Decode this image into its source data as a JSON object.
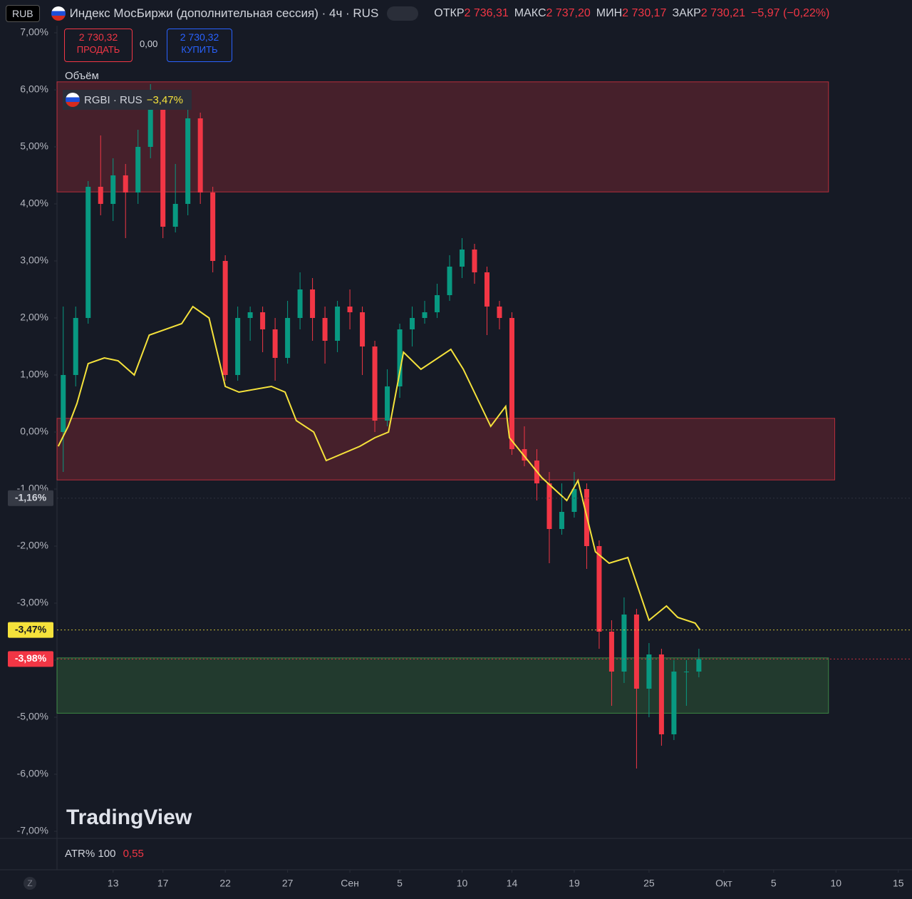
{
  "ui": {
    "currency": "RUB",
    "title": "Индекс МосБиржи (дополнительная сессия) · 4ч · RUS",
    "ohlc": [
      {
        "key": "ОТКР",
        "value": "2 736,31"
      },
      {
        "key": "МАКС",
        "value": "2 737,20"
      },
      {
        "key": "МИН",
        "value": "2 730,17"
      },
      {
        "key": "ЗАКР",
        "value": "2 730,21"
      }
    ],
    "change": "−5,97 (−0,22%)",
    "sell": {
      "price": "2 730,32",
      "label": "ПРОДАТЬ"
    },
    "spread": "0,00",
    "buy": {
      "price": "2 730,32",
      "label": "КУПИТЬ"
    },
    "volume": "Объём",
    "compare_change": "−3,47%",
    "logo": "TradingView",
    "indicator": "ATR% 100",
    "indicator_value": "0,55",
    "timezone": "Z"
  },
  "chart_data": {
    "type": "candlestick",
    "grid": false,
    "xlim": [
      8.5,
      77.1
    ],
    "ylim": [
      -7.125,
      7.125
    ],
    "yticks": [
      {
        "value": 7,
        "label": "7,00%"
      },
      {
        "value": 6,
        "label": "6,00%"
      },
      {
        "value": 5,
        "label": "5,00%"
      },
      {
        "value": 4,
        "label": "4,00%"
      },
      {
        "value": 3,
        "label": "3,00%"
      },
      {
        "value": 2,
        "label": "2,00%"
      },
      {
        "value": 1,
        "label": "1,00%"
      },
      {
        "value": 0,
        "label": "0,00%"
      },
      {
        "value": -1,
        "label": "-1,00%"
      },
      {
        "value": -2,
        "label": "-2,00%"
      },
      {
        "value": -3,
        "label": "-3,00%"
      },
      {
        "value": -4,
        "label": "-4,00%"
      },
      {
        "value": -5,
        "label": "-5,00%"
      },
      {
        "value": -6,
        "label": "-6,00%"
      },
      {
        "value": -7,
        "label": "-7,00%"
      }
    ],
    "xticks": [
      13,
      17,
      22,
      27,
      {
        "value": 32,
        "label": "Сен"
      },
      {
        "value": 36,
        "label": "5"
      },
      {
        "value": 41,
        "label": "10"
      },
      {
        "value": 45,
        "label": "14"
      },
      {
        "value": 50,
        "label": "19"
      },
      {
        "value": 56,
        "label": "25"
      },
      {
        "value": 62,
        "label": "Окт"
      },
      {
        "value": 66,
        "label": "5"
      },
      {
        "value": 71,
        "label": "10"
      },
      {
        "value": 76,
        "label": "15"
      }
    ],
    "up_color": "#089981",
    "down_color": "#f23645",
    "candles": {
      "x": [
        9,
        10,
        11,
        12,
        13,
        14,
        15,
        16,
        17,
        18,
        19,
        20,
        21,
        22,
        23,
        24,
        25,
        26,
        27,
        28,
        29,
        30,
        31,
        32,
        33,
        34,
        35,
        36,
        37,
        38,
        39,
        40,
        41,
        42,
        43,
        44,
        45,
        46,
        47,
        48,
        49,
        50,
        51,
        52,
        53,
        54,
        55,
        56,
        57,
        58,
        59,
        60
      ],
      "open": [
        0.0,
        1.0,
        2.0,
        4.3,
        4.0,
        4.5,
        4.2,
        5.0,
        5.8,
        3.6,
        4.0,
        5.5,
        4.2,
        3.0,
        1.0,
        2.0,
        2.1,
        1.8,
        1.3,
        2.0,
        2.5,
        2.0,
        1.6,
        2.2,
        2.1,
        1.5,
        0.2,
        0.8,
        1.8,
        2.0,
        2.1,
        2.4,
        2.9,
        3.2,
        2.8,
        2.2,
        2.0,
        -0.3,
        -0.5,
        -0.9,
        -1.7,
        -1.4,
        -1.0,
        -2.0,
        -3.5,
        -4.2,
        -3.2,
        -4.5,
        -3.9,
        -5.3,
        -4.2,
        -4.2
      ],
      "high": [
        2.2,
        2.2,
        4.4,
        5.2,
        4.8,
        4.7,
        5.3,
        6.1,
        6.0,
        4.7,
        5.8,
        5.6,
        4.3,
        3.1,
        2.2,
        2.2,
        2.2,
        2.0,
        2.3,
        2.8,
        2.7,
        2.2,
        2.3,
        2.5,
        2.2,
        1.6,
        1.1,
        1.9,
        2.2,
        2.3,
        2.6,
        3.1,
        3.4,
        3.3,
        2.9,
        2.3,
        2.1,
        0.1,
        -0.3,
        -0.7,
        -0.9,
        -0.7,
        -0.9,
        -1.9,
        -3.3,
        -2.9,
        -3.1,
        -3.7,
        -3.8,
        -4.0,
        -4.0,
        -3.8
      ],
      "low": [
        -0.7,
        0.8,
        1.9,
        3.8,
        3.7,
        3.4,
        4.0,
        4.8,
        3.4,
        3.5,
        3.8,
        4.0,
        2.8,
        0.9,
        0.9,
        1.6,
        1.4,
        0.9,
        1.2,
        1.8,
        1.6,
        1.2,
        1.4,
        1.8,
        1.0,
        0.0,
        0.1,
        0.6,
        1.5,
        1.9,
        2.0,
        2.3,
        2.7,
        2.6,
        1.7,
        1.8,
        -0.4,
        -0.6,
        -1.2,
        -2.3,
        -1.8,
        -1.5,
        -2.4,
        -3.8,
        -4.8,
        -4.4,
        -5.9,
        -5.0,
        -5.5,
        -5.4,
        -4.8,
        -4.3
      ],
      "close": [
        1.0,
        2.0,
        4.3,
        4.0,
        4.5,
        4.2,
        5.0,
        5.8,
        3.6,
        4.0,
        5.5,
        4.2,
        3.0,
        1.0,
        2.0,
        2.1,
        1.8,
        1.3,
        2.0,
        2.5,
        2.0,
        1.6,
        2.2,
        2.1,
        1.5,
        0.2,
        0.8,
        1.8,
        2.0,
        2.1,
        2.4,
        2.9,
        3.2,
        2.8,
        2.2,
        2.0,
        -0.3,
        -0.5,
        -0.9,
        -1.7,
        -1.4,
        -1.0,
        -2.0,
        -3.5,
        -4.2,
        -3.2,
        -4.5,
        -3.9,
        -5.3,
        -4.2,
        -4.2,
        -3.98
      ]
    },
    "line": {
      "name": "RGBI · RUS",
      "color": "#f5e23b",
      "x": [
        8.6,
        9.4,
        10.1,
        11.0,
        12.3,
        13.4,
        14.7,
        15.9,
        18.5,
        19.4,
        20.7,
        22.0,
        23.1,
        25.7,
        26.8,
        27.7,
        29.1,
        30.1,
        32.8,
        34.0,
        35.1,
        36.3,
        37.7,
        40.1,
        41.1,
        43.3,
        44.5,
        44.8,
        47.4,
        49.4,
        50.3,
        51.7,
        52.8,
        54.3,
        56.0,
        57.4,
        58.3,
        59.7,
        60.1
      ],
      "values": [
        -0.25,
        0.1,
        0.5,
        1.2,
        1.3,
        1.25,
        1.0,
        1.7,
        1.9,
        2.2,
        2.0,
        0.8,
        0.7,
        0.8,
        0.7,
        0.2,
        0.0,
        -0.5,
        -0.25,
        -0.1,
        0.0,
        1.4,
        1.1,
        1.45,
        1.1,
        0.1,
        0.45,
        -0.1,
        -0.8,
        -1.2,
        -0.85,
        -2.1,
        -2.3,
        -2.2,
        -3.3,
        -3.05,
        -3.25,
        -3.35,
        -3.47
      ]
    },
    "zones": [
      {
        "x": [
          8.5,
          70.4
        ],
        "y": [
          4.21,
          6.14
        ],
        "color": "#f23645"
      },
      {
        "x": [
          8.5,
          70.9
        ],
        "y": [
          -0.84,
          0.24
        ],
        "color": "#f23645"
      },
      {
        "x": [
          8.5,
          70.4
        ],
        "y": [
          -4.93,
          -3.96
        ],
        "color": "#4caf50"
      }
    ],
    "price_markers": [
      {
        "value": -1.16,
        "label": "-1,16%",
        "color": "#363a45",
        "text_color": "#d1d4dc"
      },
      {
        "value": -3.47,
        "label": "-3,47%",
        "color": "#f5e23b",
        "text_color": "#131722"
      },
      {
        "value": -3.98,
        "label": "-3,98%",
        "color": "#f23645",
        "text_color": "#ffffff"
      }
    ]
  }
}
